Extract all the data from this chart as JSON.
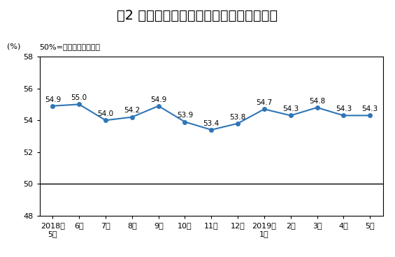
{
  "title": "图2 非制造业商务活动指数（经季节调整）",
  "ylabel": "(%)",
  "subtitle": "50%=与上月比较无变化",
  "x_labels": [
    "2018年\n5月",
    "6月",
    "7月",
    "8月",
    "9月",
    "10月",
    "11月",
    "12月",
    "2019年\n1月",
    "2月",
    "3月",
    "4月",
    "5月"
  ],
  "values": [
    54.9,
    55.0,
    54.0,
    54.2,
    54.9,
    53.9,
    53.4,
    53.8,
    54.7,
    54.3,
    54.8,
    54.3,
    54.3
  ],
  "ylim": [
    48,
    58
  ],
  "yticks": [
    48,
    50,
    52,
    54,
    56,
    58
  ],
  "hline_y": 50,
  "line_color": "#2F75B6",
  "marker_color": "#2F75B6",
  "bg_color": "#FFFFFF",
  "plot_bg_color": "#FFFFFF",
  "annotation_fontsize": 7.5,
  "title_fontsize": 14,
  "subtitle_fontsize": 8,
  "ylabel_fontsize": 8,
  "tick_fontsize": 8
}
